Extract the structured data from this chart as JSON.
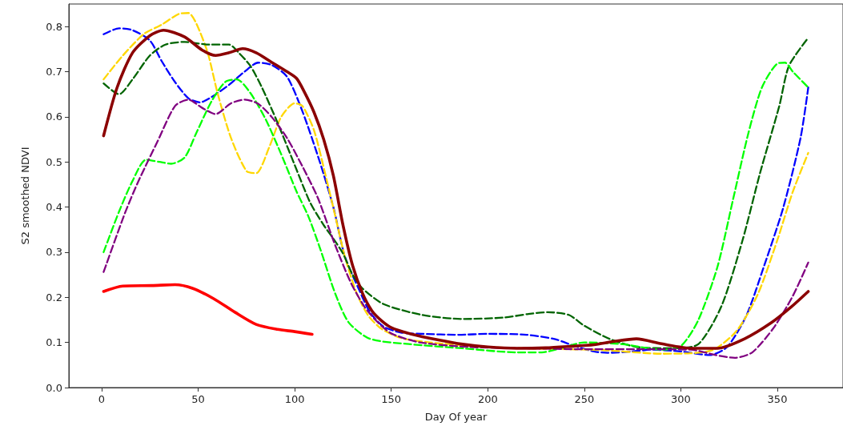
{
  "chart_data": {
    "type": "line",
    "xlabel": "Day Of year",
    "ylabel": "S2 smoothed NDVI",
    "xlim": [
      -17,
      384
    ],
    "xticks": [
      0,
      50,
      100,
      150,
      200,
      250,
      300,
      350
    ],
    "ylim": [
      0,
      0.85
    ],
    "yticks": [
      {
        "value": 0,
        "label": "0.0"
      },
      0.1,
      0.2,
      0.3,
      0.4,
      0.5,
      0.6,
      0.7,
      0.8
    ],
    "series": [
      {
        "color": "#0000ff",
        "line_style": "dashed",
        "x": [
          1,
          9,
          16,
          25,
          31,
          38,
          45,
          51,
          57,
          66,
          74,
          81,
          88,
          96,
          104,
          113,
          120,
          126,
          133,
          139,
          146,
          155,
          166,
          185,
          200,
          220,
          235,
          245,
          255,
          262,
          275,
          285,
          300,
          315,
          324,
          334,
          343,
          353,
          362,
          366
        ],
        "values": [
          0.783,
          0.796,
          0.792,
          0.769,
          0.724,
          0.677,
          0.641,
          0.632,
          0.644,
          0.671,
          0.7,
          0.72,
          0.715,
          0.689,
          0.612,
          0.5,
          0.4,
          0.29,
          0.22,
          0.167,
          0.135,
          0.122,
          0.119,
          0.117,
          0.119,
          0.117,
          0.107,
          0.092,
          0.08,
          0.077,
          0.08,
          0.084,
          0.08,
          0.072,
          0.09,
          0.16,
          0.268,
          0.398,
          0.553,
          0.665
        ]
      },
      {
        "color": "#ffd700",
        "line_style": "dashed",
        "x": [
          1,
          11,
          22,
          31,
          40,
          45,
          49,
          55,
          60,
          67,
          75,
          80,
          87,
          93,
          100,
          104,
          110,
          116,
          121,
          126,
          132,
          138,
          145,
          155,
          170,
          200,
          230,
          260,
          290,
          305,
          317,
          329,
          340,
          350,
          358,
          366
        ],
        "values": [
          0.683,
          0.736,
          0.784,
          0.804,
          0.828,
          0.83,
          0.807,
          0.741,
          0.653,
          0.553,
          0.48,
          0.475,
          0.535,
          0.6,
          0.63,
          0.624,
          0.57,
          0.47,
          0.38,
          0.29,
          0.21,
          0.16,
          0.13,
          0.11,
          0.1,
          0.09,
          0.086,
          0.083,
          0.075,
          0.076,
          0.084,
          0.126,
          0.208,
          0.327,
          0.434,
          0.52
        ]
      },
      {
        "color": "#006400",
        "line_style": "dashed",
        "x": [
          1,
          9,
          16,
          25,
          33,
          43,
          56,
          66,
          71,
          77,
          83,
          91,
          100,
          108,
          115,
          120,
          125,
          130,
          135,
          146,
          166,
          187,
          208,
          221,
          231,
          242,
          250,
          263,
          277,
          296,
          309,
          321,
          332,
          341,
          351,
          356,
          366
        ],
        "values": [
          0.674,
          0.65,
          0.683,
          0.736,
          0.76,
          0.766,
          0.76,
          0.76,
          0.742,
          0.713,
          0.665,
          0.588,
          0.493,
          0.41,
          0.36,
          0.33,
          0.297,
          0.25,
          0.22,
          0.185,
          0.161,
          0.152,
          0.155,
          0.163,
          0.167,
          0.161,
          0.137,
          0.108,
          0.09,
          0.087,
          0.096,
          0.18,
          0.327,
          0.475,
          0.624,
          0.713,
          0.775
        ]
      },
      {
        "color": "#00ff00",
        "line_style": "dashed",
        "x": [
          1,
          9,
          16,
          23,
          30,
          36,
          43,
          49,
          57,
          64,
          70,
          77,
          85,
          93,
          101,
          107,
          113,
          121,
          128,
          139,
          160,
          187,
          215,
          228,
          240,
          250,
          270,
          290,
          300,
          309,
          319,
          327,
          335,
          342,
          350,
          354,
          358,
          366
        ],
        "values": [
          0.3,
          0.39,
          0.458,
          0.505,
          0.5,
          0.496,
          0.51,
          0.564,
          0.635,
          0.677,
          0.683,
          0.653,
          0.594,
          0.517,
          0.434,
          0.38,
          0.31,
          0.208,
          0.144,
          0.108,
          0.096,
          0.087,
          0.078,
          0.078,
          0.09,
          0.1,
          0.096,
          0.084,
          0.092,
          0.149,
          0.268,
          0.416,
          0.564,
          0.665,
          0.718,
          0.72,
          0.7,
          0.665
        ]
      },
      {
        "color": "#800080",
        "line_style": "dashed",
        "x": [
          1,
          12,
          19,
          29,
          38,
          45,
          52,
          59,
          67,
          74,
          81,
          88,
          96,
          104,
          112,
          121,
          129,
          136,
          142,
          150,
          165,
          190,
          220,
          250,
          280,
          305,
          318,
          328,
          337,
          348,
          358,
          366
        ],
        "values": [
          0.256,
          0.386,
          0.457,
          0.546,
          0.624,
          0.638,
          0.62,
          0.606,
          0.63,
          0.638,
          0.629,
          0.6,
          0.553,
          0.49,
          0.42,
          0.315,
          0.233,
          0.18,
          0.149,
          0.12,
          0.1,
          0.09,
          0.087,
          0.085,
          0.085,
          0.084,
          0.072,
          0.066,
          0.078,
          0.132,
          0.203,
          0.277
        ]
      },
      {
        "color": "#ff0000",
        "line_style": "solid",
        "x": [
          1,
          11,
          26,
          38,
          47,
          58,
          69,
          80,
          91,
          100,
          109
        ],
        "values": [
          0.213,
          0.225,
          0.226,
          0.228,
          0.22,
          0.197,
          0.167,
          0.14,
          0.129,
          0.124,
          0.118
        ]
      },
      {
        "color": "#8b0000",
        "line_style": "solid",
        "x": [
          1,
          8,
          16,
          25,
          32,
          43,
          52,
          59,
          66,
          73,
          80,
          88,
          96,
          101,
          105,
          110,
          115,
          120,
          125,
          130,
          135,
          140,
          145,
          150,
          160,
          175,
          187,
          200,
          215,
          230,
          242,
          255,
          265,
          277,
          290,
          306,
          319,
          333,
          347,
          357,
          366
        ],
        "values": [
          0.558,
          0.665,
          0.742,
          0.78,
          0.792,
          0.777,
          0.748,
          0.736,
          0.742,
          0.751,
          0.742,
          0.721,
          0.7,
          0.685,
          0.655,
          0.61,
          0.55,
          0.47,
          0.36,
          0.27,
          0.21,
          0.17,
          0.148,
          0.133,
          0.119,
          0.105,
          0.096,
          0.09,
          0.087,
          0.088,
          0.091,
          0.095,
          0.102,
          0.108,
          0.097,
          0.087,
          0.087,
          0.108,
          0.144,
          0.178,
          0.213
        ]
      }
    ]
  }
}
